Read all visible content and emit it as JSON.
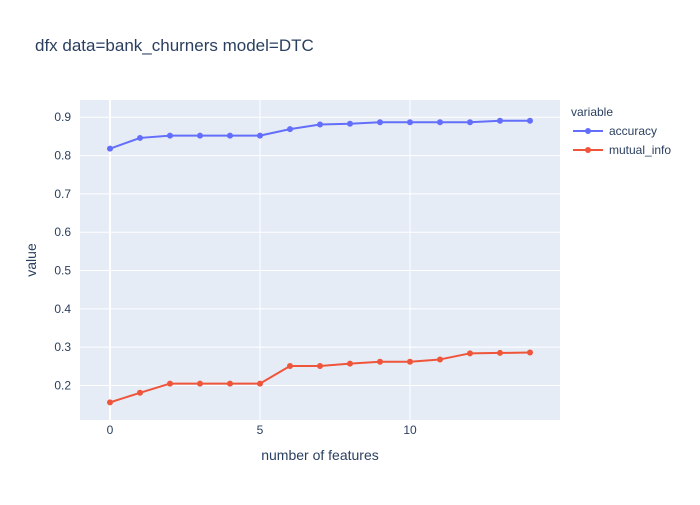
{
  "chart_data": {
    "type": "line",
    "title": "dfx data=bank_churners model=DTC",
    "xlabel": "number of features",
    "ylabel": "value",
    "xlim": [
      -1,
      15
    ],
    "ylim": [
      0.11,
      0.945
    ],
    "xticks": [
      0,
      5,
      10
    ],
    "yticks": [
      0.2,
      0.3,
      0.4,
      0.5,
      0.6,
      0.7,
      0.8,
      0.9
    ],
    "grid": true,
    "legend": {
      "title": "variable",
      "position": "top-right"
    },
    "x": [
      0,
      1,
      2,
      3,
      4,
      5,
      6,
      7,
      8,
      9,
      10,
      11,
      12,
      13,
      14
    ],
    "series": [
      {
        "name": "accuracy",
        "color": "#636efa",
        "values": [
          0.818,
          0.846,
          0.852,
          0.852,
          0.852,
          0.852,
          0.869,
          0.881,
          0.883,
          0.887,
          0.887,
          0.887,
          0.887,
          0.891,
          0.891
        ]
      },
      {
        "name": "mutual_info",
        "color": "#ef553b",
        "values": [
          0.156,
          0.181,
          0.205,
          0.205,
          0.205,
          0.205,
          0.251,
          0.251,
          0.257,
          0.262,
          0.262,
          0.268,
          0.284,
          0.285,
          0.286
        ]
      }
    ],
    "plot_bg": "#e5ecf6",
    "grid_color": "#ffffff"
  }
}
